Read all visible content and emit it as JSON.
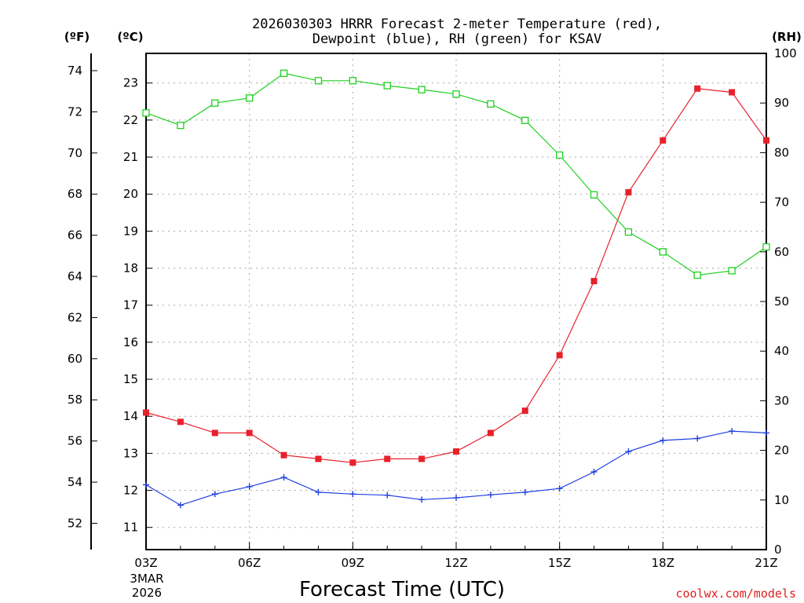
{
  "chart_data": {
    "type": "line",
    "title_line1": "2026030303 HRRR Forecast 2-meter Temperature (red),",
    "title_line2": "Dewpoint (blue), RH (green) for KSAV",
    "xlabel": "Forecast Time (UTC)",
    "date_label_1": "3MAR",
    "date_label_2": "2026",
    "credit": "coolwx.com/models",
    "unit_f": "(ºF)",
    "unit_c": "(ºC)",
    "unit_rh": "(RH)",
    "x_hours": [
      3,
      4,
      5,
      6,
      7,
      8,
      9,
      10,
      11,
      12,
      13,
      14,
      15,
      16,
      17,
      18,
      19,
      20,
      21
    ],
    "x_ticks": [
      {
        "hour": 3,
        "label": "03Z"
      },
      {
        "hour": 6,
        "label": "06Z"
      },
      {
        "hour": 9,
        "label": "09Z"
      },
      {
        "hour": 12,
        "label": "12Z"
      },
      {
        "hour": 15,
        "label": "15Z"
      },
      {
        "hour": 18,
        "label": "18Z"
      },
      {
        "hour": 21,
        "label": "21Z"
      }
    ],
    "xlim": [
      3,
      21
    ],
    "ylim_c": [
      10.4,
      23.8
    ],
    "ylim_rh": [
      0,
      100
    ],
    "c_ticks": [
      "11",
      "12",
      "13",
      "14",
      "15",
      "16",
      "17",
      "18",
      "19",
      "20",
      "21",
      "22",
      "23"
    ],
    "f_ticks": [
      "52",
      "54",
      "56",
      "58",
      "60",
      "62",
      "64",
      "66",
      "68",
      "70",
      "72",
      "74"
    ],
    "rh_ticks": [
      "0",
      "10",
      "20",
      "30",
      "40",
      "50",
      "60",
      "70",
      "80",
      "90",
      "100"
    ],
    "series": [
      {
        "name": "Temperature",
        "unit": "C",
        "color": "#e8202a",
        "marker": "filled-square",
        "values": [
          14.1,
          13.85,
          13.55,
          13.55,
          12.95,
          12.85,
          12.75,
          12.85,
          12.85,
          13.05,
          13.55,
          14.15,
          15.65,
          17.65,
          20.05,
          21.45,
          22.85,
          22.75,
          21.45
        ]
      },
      {
        "name": "Dewpoint",
        "unit": "C",
        "color": "#2040e0",
        "marker": "plus",
        "values": [
          12.15,
          11.6,
          11.9,
          12.1,
          12.35,
          11.95,
          11.9,
          11.87,
          11.75,
          11.8,
          11.88,
          11.95,
          12.05,
          12.5,
          13.05,
          13.35,
          13.4,
          13.6,
          13.55
        ]
      },
      {
        "name": "RH",
        "unit": "%",
        "color": "#20d020",
        "marker": "open-square",
        "values": [
          88.0,
          85.5,
          90.0,
          91.0,
          96.0,
          94.5,
          94.5,
          93.5,
          92.7,
          91.8,
          89.8,
          86.5,
          79.5,
          71.5,
          64.0,
          60.0,
          55.3,
          56.2,
          61.0
        ]
      }
    ]
  }
}
